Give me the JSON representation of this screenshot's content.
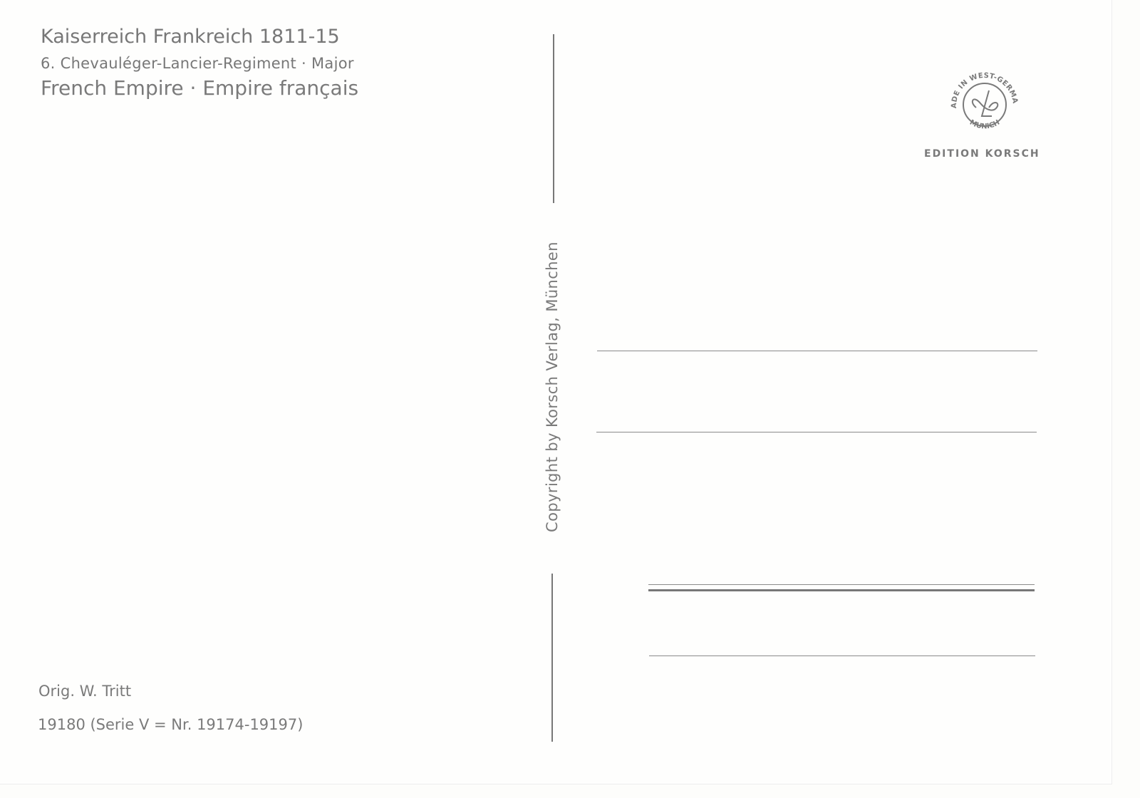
{
  "header": {
    "title": "Kaiserreich Frankreich 1811-15",
    "subtitle": "6. Chevauléger-Lancier-Regiment · Major",
    "empire": "French Empire · Empire français"
  },
  "footer": {
    "artist": "Orig. W. Tritt",
    "serial": "19180 (Serie V = Nr. 19174-19197)"
  },
  "divider": {
    "copyright": "Copyright by Korsch Verlag, München"
  },
  "publisher": {
    "logo_text_top": "MADE IN WEST-GERMANY",
    "logo_text_bottom": "MUNICH",
    "brand": "EDITION KORSCH"
  },
  "colors": {
    "ink": "#7a7a7a",
    "paper": "#fefefd"
  }
}
